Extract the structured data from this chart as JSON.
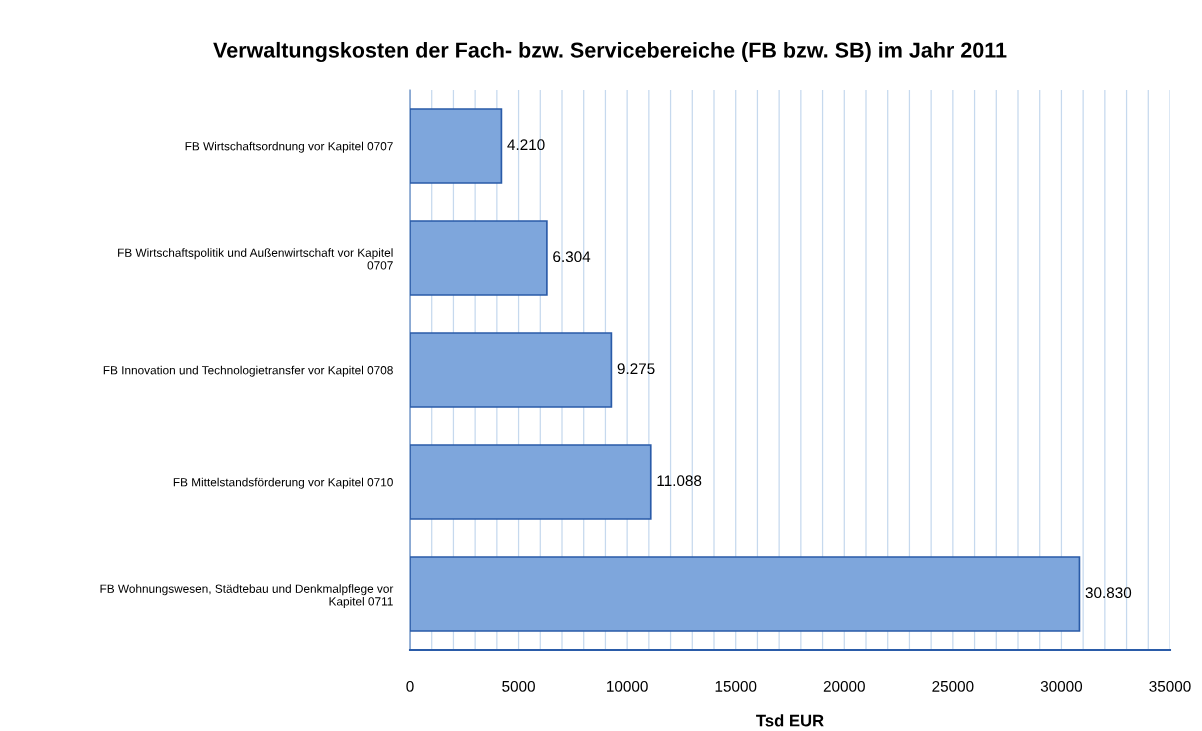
{
  "chart_data": {
    "type": "bar",
    "orientation": "horizontal",
    "title": "Verwaltungskosten der Fach- bzw. Servicebereiche (FB bzw. SB) im Jahr 2011",
    "xlabel": "Tsd EUR",
    "categories": [
      "FB Wirtschaftsordnung vor Kapitel 0707",
      "FB Wirtschaftspolitik und Außenwirtschaft vor Kapitel\n0707",
      "FB Innovation und Technologietransfer vor Kapitel 0708",
      "FB Mittelstandsförderung vor Kapitel 0710",
      "FB Wohnungswesen, Städtebau und Denkmalpflege vor\nKapitel 0711"
    ],
    "values": [
      4210,
      6304,
      9275,
      11088,
      30830
    ],
    "value_labels": [
      "4.210",
      "6.304",
      "9.275",
      "11.088",
      "30.830"
    ],
    "color": "#7ea6dc",
    "xlim": [
      0,
      35000
    ],
    "xticks": [
      0,
      {
        "value": 1000,
        "label": null
      },
      {
        "value": 2000,
        "label": null
      },
      {
        "value": 3000,
        "label": null
      },
      {
        "value": 4000,
        "label": null
      },
      5000,
      {
        "value": 6000,
        "label": null
      },
      {
        "value": 7000,
        "label": null
      },
      {
        "value": 8000,
        "label": null
      },
      {
        "value": 9000,
        "label": null
      },
      10000,
      {
        "value": 11000,
        "label": null
      },
      {
        "value": 12000,
        "label": null
      },
      {
        "value": 13000,
        "label": null
      },
      {
        "value": 14000,
        "label": null
      },
      15000,
      {
        "value": 16000,
        "label": null
      },
      {
        "value": 17000,
        "label": null
      },
      {
        "value": 18000,
        "label": null
      },
      {
        "value": 19000,
        "label": null
      },
      20000,
      {
        "value": 21000,
        "label": null
      },
      {
        "value": 22000,
        "label": null
      },
      {
        "value": 23000,
        "label": null
      },
      {
        "value": 24000,
        "label": null
      },
      25000,
      {
        "value": 26000,
        "label": null
      },
      {
        "value": 27000,
        "label": null
      },
      {
        "value": 28000,
        "label": null
      },
      {
        "value": 29000,
        "label": null
      },
      30000,
      {
        "value": 31000,
        "label": null
      },
      {
        "value": 32000,
        "label": null
      },
      {
        "value": 33000,
        "label": null
      },
      {
        "value": 34000,
        "label": null
      },
      35000
    ],
    "grid": "x",
    "legend": false
  }
}
